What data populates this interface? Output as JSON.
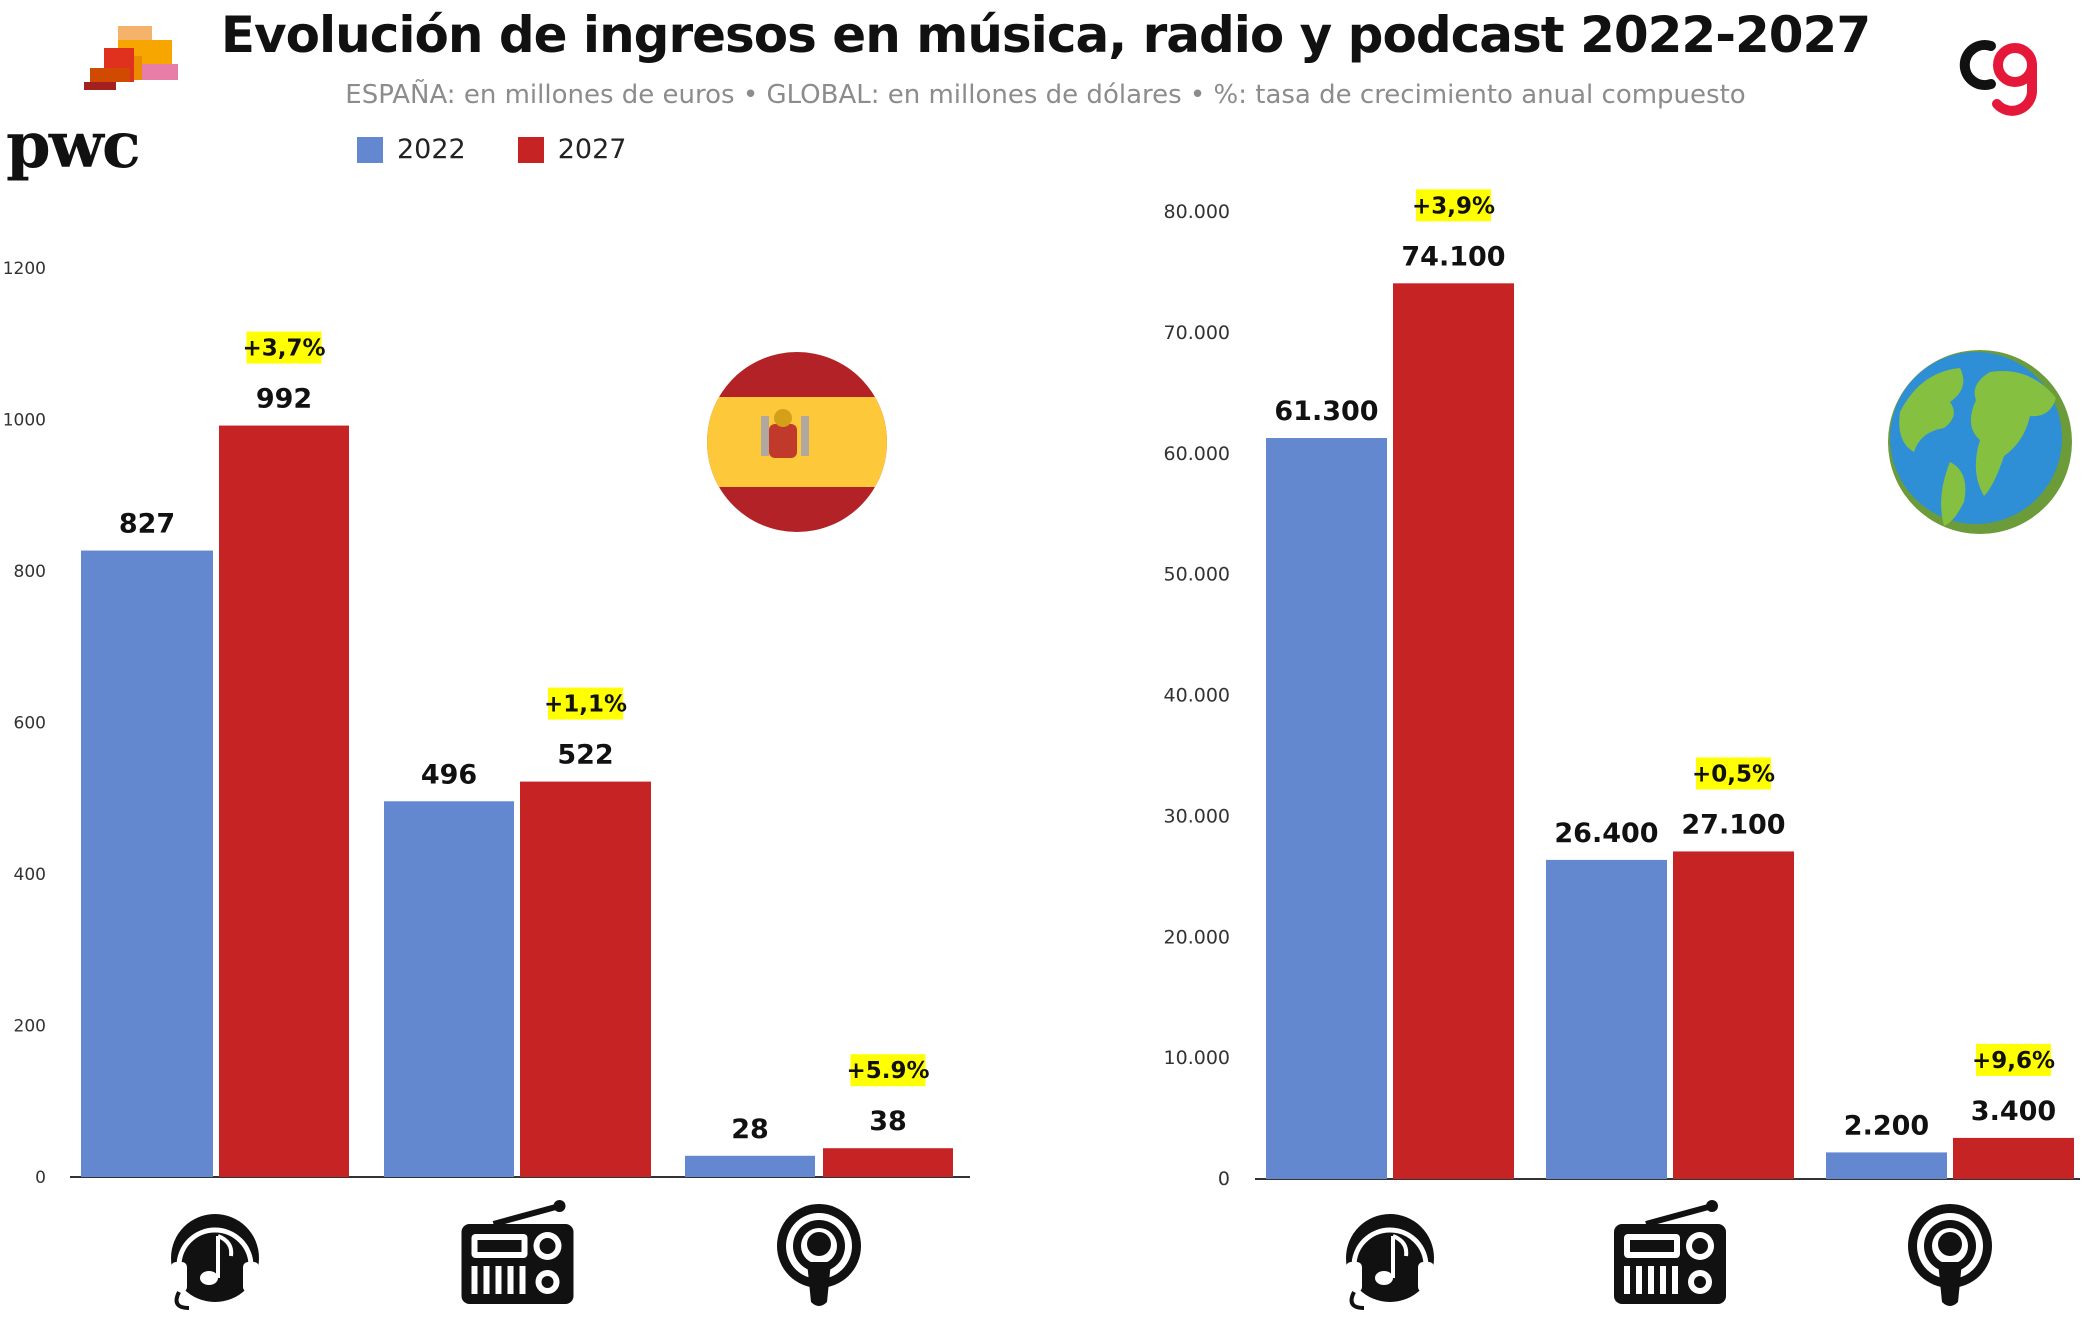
{
  "header": {
    "title": "Evolución de ingresos en música, radio y podcast 2022-2027",
    "subtitle": "ESPAÑA: en millones de euros • GLOBAL: en millones de dólares • %: tasa de crecimiento anual compuesto"
  },
  "logos": {
    "left": "pwc",
    "right": "cg"
  },
  "colors": {
    "series_2022": "#6388cf",
    "series_2027": "#c62424",
    "badge": "#ffff00",
    "axis": "#333333",
    "pwc_orange": "#e0301e",
    "brand_red": "#e5183a"
  },
  "legend": [
    {
      "label": "2022",
      "color": "#6388cf"
    },
    {
      "label": "2027",
      "color": "#c62424"
    }
  ],
  "chart_data": [
    {
      "type": "bar",
      "region_icon": "spain-flag-icon",
      "categories": [
        "music",
        "radio",
        "podcast"
      ],
      "category_icons": [
        "headphones-music-icon",
        "radio-icon",
        "podcast-icon"
      ],
      "ylim": [
        0,
        1200
      ],
      "yticks": [
        "0",
        "200",
        "400",
        "600",
        "800",
        "1000",
        "1200"
      ],
      "series": [
        {
          "name": "2022",
          "values": [
            827,
            496,
            28
          ],
          "labels": [
            "827",
            "496",
            "28"
          ]
        },
        {
          "name": "2027",
          "values": [
            992,
            522,
            38
          ],
          "labels": [
            "992",
            "522",
            "38"
          ]
        }
      ],
      "growth": [
        "+3,7%",
        "+1,1%",
        "+5.9%"
      ]
    },
    {
      "type": "bar",
      "region_icon": "globe-icon",
      "categories": [
        "music",
        "radio",
        "podcast"
      ],
      "category_icons": [
        "headphones-music-icon",
        "radio-icon",
        "podcast-icon"
      ],
      "ylim": [
        0,
        80000
      ],
      "yticks": [
        "0",
        "10.000",
        "20.000",
        "30.000",
        "40.000",
        "50.000",
        "60.000",
        "70.000",
        "80.000"
      ],
      "series": [
        {
          "name": "2022",
          "values": [
            61300,
            26400,
            2200
          ],
          "labels": [
            "61.300",
            "26.400",
            "2.200"
          ]
        },
        {
          "name": "2027",
          "values": [
            74100,
            27100,
            3400
          ],
          "labels": [
            "74.100",
            "27.100",
            "3.400"
          ]
        }
      ],
      "growth": [
        "+3,9%",
        "+0,5%",
        "+9,6%"
      ]
    }
  ]
}
